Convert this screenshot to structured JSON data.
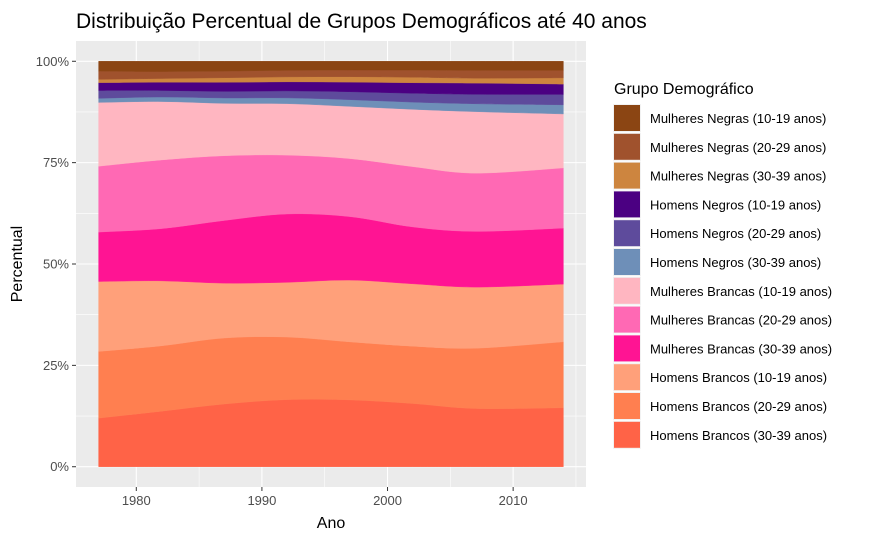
{
  "chart_data": {
    "type": "area",
    "stacked": "percent",
    "title": "Distribuição Percentual de Grupos Demográficos até 40 anos",
    "xlabel": "Ano",
    "ylabel": "Percentual",
    "xlim": [
      1977,
      2014
    ],
    "ylim": [
      0,
      1
    ],
    "x_ticks": [
      1980,
      1990,
      2000,
      2010
    ],
    "y_ticks": [
      0,
      0.25,
      0.5,
      0.75,
      1.0
    ],
    "y_tick_labels": [
      "0%",
      "25%",
      "50%",
      "75%",
      "100%"
    ],
    "grid": true,
    "legend_title": "Grupo Demográfico",
    "legend_position": "right",
    "x": [
      1977,
      1982,
      1987,
      1992,
      1997,
      2002,
      2007,
      2014
    ],
    "series": [
      {
        "name": "Mulheres Negras (10-19 anos)",
        "color": "#8B4513",
        "values": [
          0.024,
          0.025,
          0.024,
          0.022,
          0.021,
          0.021,
          0.022,
          0.022
        ]
      },
      {
        "name": "Mulheres Negras (20-29 anos)",
        "color": "#A0522D",
        "values": [
          0.02,
          0.017,
          0.016,
          0.016,
          0.016,
          0.017,
          0.019,
          0.018
        ]
      },
      {
        "name": "Mulheres Negras (30-39 anos)",
        "color": "#CD853F",
        "values": [
          0.008,
          0.009,
          0.011,
          0.012,
          0.013,
          0.013,
          0.012,
          0.015
        ]
      },
      {
        "name": "Homens Negros (10-19 anos)",
        "color": "#4B0082",
        "values": [
          0.019,
          0.02,
          0.022,
          0.022,
          0.023,
          0.025,
          0.027,
          0.025
        ]
      },
      {
        "name": "Homens Negros (20-29 anos)",
        "color": "#5E4B9C",
        "values": [
          0.019,
          0.016,
          0.016,
          0.017,
          0.019,
          0.021,
          0.023,
          0.025
        ]
      },
      {
        "name": "Homens Negros (30-39 anos)",
        "color": "#6E8FB8",
        "values": [
          0.01,
          0.011,
          0.013,
          0.014,
          0.016,
          0.017,
          0.019,
          0.022
        ]
      },
      {
        "name": "Mulheres Brancas (10-19 anos)",
        "color": "#FFB6C1",
        "values": [
          0.155,
          0.142,
          0.127,
          0.125,
          0.125,
          0.136,
          0.149,
          0.13
        ]
      },
      {
        "name": "Mulheres Brancas (20-29 anos)",
        "color": "#FF69B4",
        "values": [
          0.16,
          0.167,
          0.157,
          0.143,
          0.139,
          0.143,
          0.141,
          0.145
        ]
      },
      {
        "name": "Mulheres Brancas (30-39 anos)",
        "color": "#FF1493",
        "values": [
          0.12,
          0.127,
          0.152,
          0.166,
          0.152,
          0.135,
          0.135,
          0.135
        ]
      },
      {
        "name": "Homens Brancos (10-19 anos)",
        "color": "#FFA07A",
        "values": [
          0.17,
          0.158,
          0.133,
          0.133,
          0.148,
          0.148,
          0.148,
          0.139
        ]
      },
      {
        "name": "Homens Brancos (20-29 anos)",
        "color": "#FF7F50",
        "values": [
          0.162,
          0.159,
          0.16,
          0.152,
          0.139,
          0.136,
          0.146,
          0.159
        ]
      },
      {
        "name": "Homens Brancos (30-39 anos)",
        "color": "#FF6347",
        "values": [
          0.118,
          0.135,
          0.152,
          0.163,
          0.16,
          0.15,
          0.141,
          0.142
        ]
      }
    ]
  }
}
